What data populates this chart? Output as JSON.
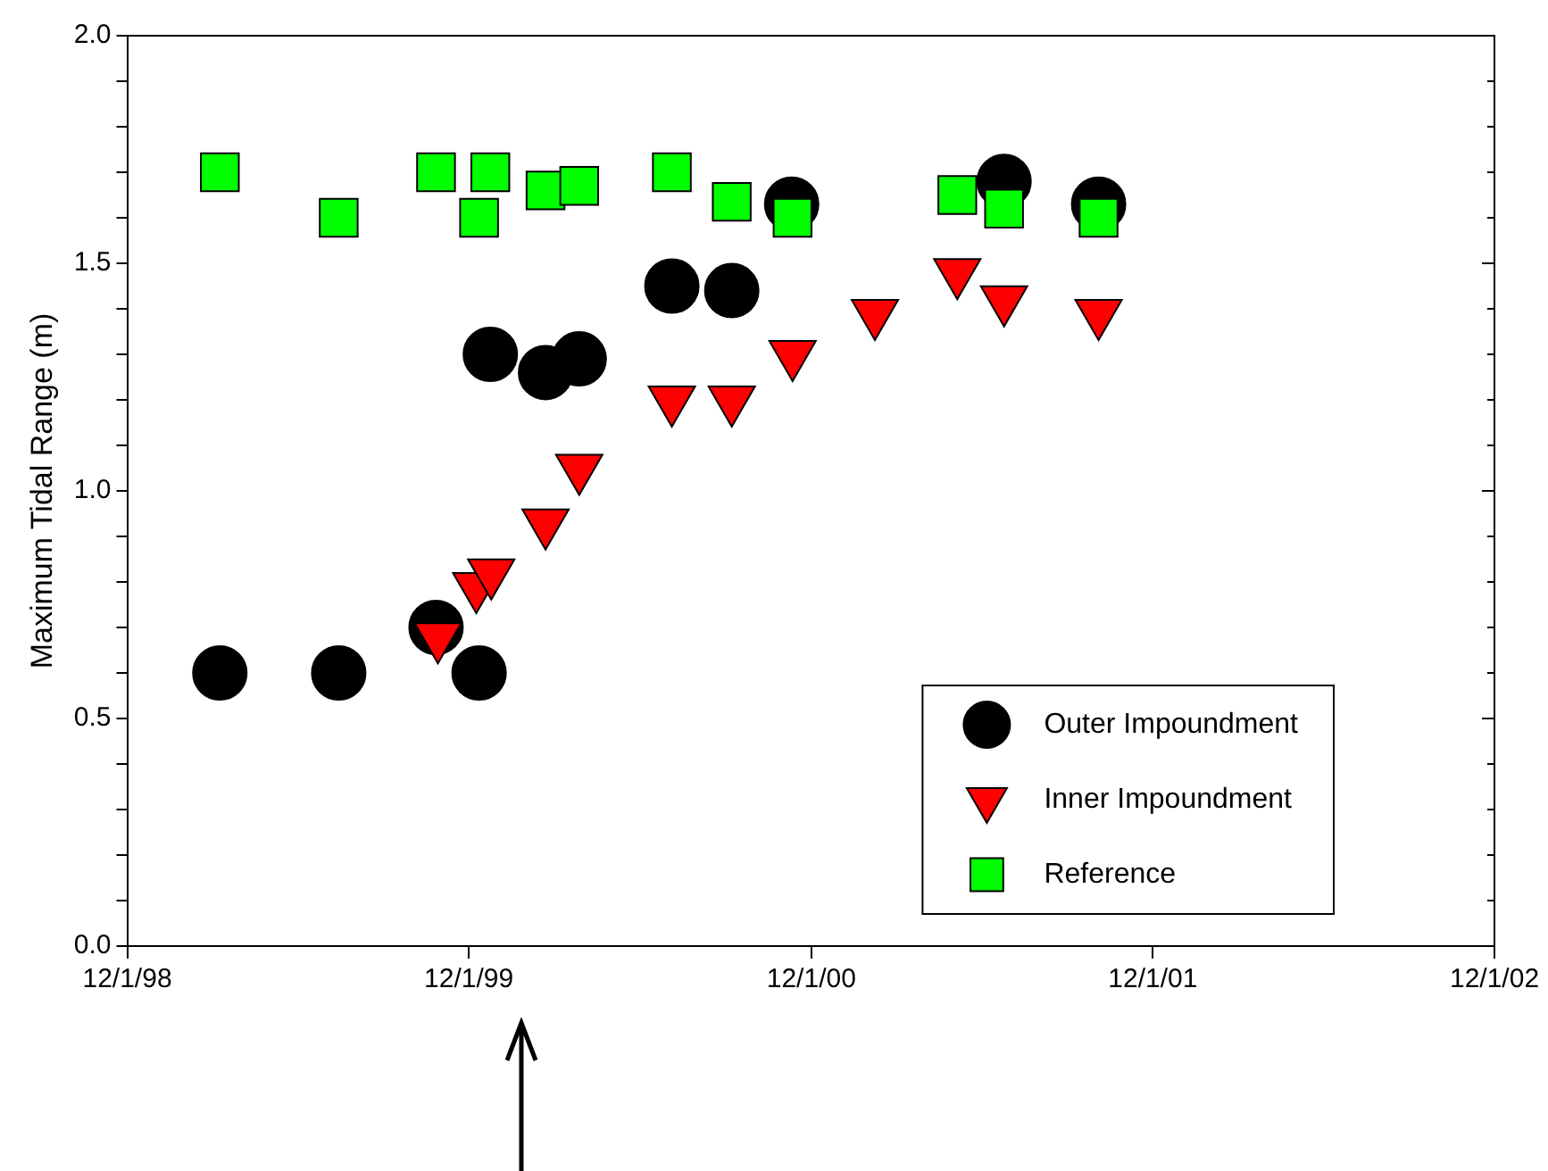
{
  "chart_data": {
    "type": "scatter",
    "ylabel": "Maximum Tidal Range (m)",
    "xlim": [
      "1998-12-01",
      "2002-12-01"
    ],
    "xticks": [
      {
        "value": "1998-12-01",
        "label": "12/1/98"
      },
      {
        "value": "1999-12-01",
        "label": "12/1/99"
      },
      {
        "value": "2000-12-01",
        "label": "12/1/00"
      },
      {
        "value": "2001-12-01",
        "label": "12/1/01"
      },
      {
        "value": "2002-12-01",
        "label": "12/1/02"
      }
    ],
    "ylim": [
      0,
      2
    ],
    "yticks": [
      {
        "value": 0,
        "label": "0.0"
      },
      {
        "value": 0.1,
        "label": null
      },
      {
        "value": 0.2,
        "label": null
      },
      {
        "value": 0.3,
        "label": null
      },
      {
        "value": 0.4,
        "label": null
      },
      {
        "value": 0.5,
        "label": "0.5"
      },
      {
        "value": 0.6,
        "label": null
      },
      {
        "value": 0.7,
        "label": null
      },
      {
        "value": 0.8,
        "label": null
      },
      {
        "value": 0.9,
        "label": null
      },
      {
        "value": 1,
        "label": "1.0"
      },
      {
        "value": 1.1,
        "label": null
      },
      {
        "value": 1.2,
        "label": null
      },
      {
        "value": 1.3,
        "label": null
      },
      {
        "value": 1.4,
        "label": null
      },
      {
        "value": 1.5,
        "label": "1.5"
      },
      {
        "value": 1.6,
        "label": null
      },
      {
        "value": 1.7,
        "label": null
      },
      {
        "value": 1.8,
        "label": null
      },
      {
        "value": 1.9,
        "label": null
      },
      {
        "value": 2,
        "label": "2.0"
      }
    ],
    "grid": false,
    "legend": "bottom right",
    "series": [
      {
        "name": "Outer Impoundment",
        "color": "#000000",
        "marker": "circle",
        "x": [
          "1999-03-10",
          "1999-07-15",
          "1999-10-27",
          "1999-12-12",
          "1999-12-24",
          "2000-02-21",
          "2000-03-28",
          "2000-07-05",
          "2000-09-07",
          "2000-11-10",
          "2001-06-25",
          "2001-10-04"
        ],
        "values": [
          0.6,
          0.6,
          0.7,
          0.6,
          1.3,
          1.26,
          1.29,
          1.45,
          1.44,
          1.63,
          1.68,
          1.63
        ]
      },
      {
        "name": "Inner Impoundment",
        "color": "#ff0000",
        "marker": "triangle",
        "x": [
          "1999-10-29",
          "1999-12-09",
          "1999-12-25",
          "2000-02-21",
          "2000-03-28",
          "2000-07-05",
          "2000-09-07",
          "2000-11-11",
          "2001-02-07",
          "2001-05-06",
          "2001-06-25",
          "2001-10-04"
        ],
        "values": [
          0.68,
          0.79,
          0.82,
          0.93,
          1.05,
          1.2,
          1.2,
          1.3,
          1.39,
          1.48,
          1.42,
          1.39
        ]
      },
      {
        "name": "Reference",
        "color": "#00ff00",
        "marker": "square",
        "x": [
          "1999-03-10",
          "1999-07-15",
          "1999-10-27",
          "1999-12-12",
          "1999-12-24",
          "2000-02-21",
          "2000-03-28",
          "2000-07-05",
          "2000-09-07",
          "2000-11-11",
          "2001-05-06",
          "2001-06-25",
          "2001-10-04"
        ],
        "values": [
          1.7,
          1.6,
          1.7,
          1.6,
          1.7,
          1.66,
          1.67,
          1.7,
          1.635,
          1.6,
          1.65,
          1.62,
          1.6
        ]
      }
    ]
  }
}
